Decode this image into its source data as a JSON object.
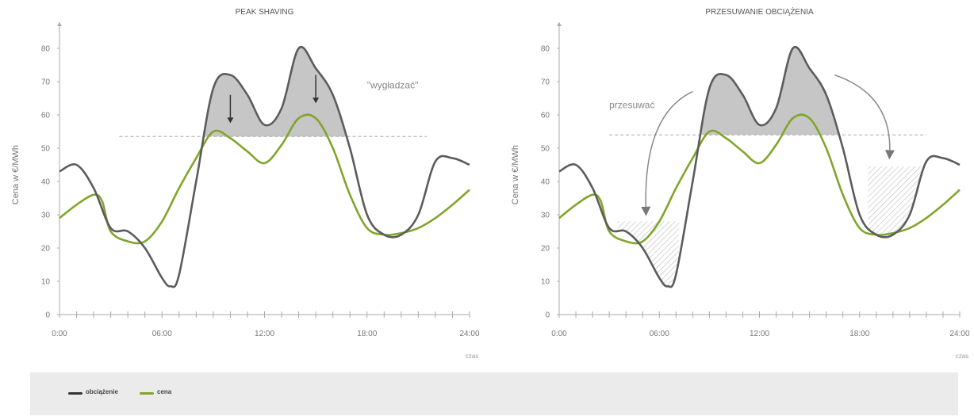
{
  "colors": {
    "load": "#5c5c5c",
    "price": "#7fa62b",
    "fill": "#c6c6c6",
    "axis": "#aaaaaa",
    "text": "#777777"
  },
  "legend": {
    "load_label": "obciążenie",
    "price_label": "cena"
  },
  "chart_data": [
    {
      "type": "line",
      "title": "PEAK SHAVING",
      "xlabel": "czas",
      "ylabel": "Cena w €/MWh",
      "xlim": [
        0,
        24
      ],
      "ylim": [
        0,
        85
      ],
      "x_ticks": [
        "0:00",
        "06:00",
        "12:00",
        "18:00",
        "24:00"
      ],
      "y_ticks": [
        0,
        10,
        20,
        30,
        40,
        50,
        60,
        70,
        80
      ],
      "threshold": 53.5,
      "annotation": "\"wygładzać\"",
      "series": [
        {
          "name": "obciążenie",
          "x": [
            0,
            1,
            2,
            3,
            4,
            5,
            6,
            6.5,
            7,
            8,
            9,
            10,
            11,
            12,
            13,
            14,
            15,
            16,
            17,
            18,
            19,
            20,
            21,
            22,
            23,
            24
          ],
          "y": [
            43,
            45,
            38,
            26,
            25,
            20,
            11,
            8.5,
            12,
            40,
            68,
            72,
            66,
            57,
            62,
            80,
            74,
            66,
            50,
            30,
            24,
            24,
            30,
            46,
            47,
            45
          ]
        },
        {
          "name": "cena",
          "x": [
            0,
            1,
            2,
            2.5,
            3,
            4,
            5,
            6,
            7,
            8,
            9,
            10,
            11,
            12,
            13,
            14,
            15,
            16,
            17,
            18,
            19,
            20,
            21,
            22,
            23,
            24
          ],
          "y": [
            29,
            33,
            36,
            34,
            25,
            22,
            22,
            28,
            38,
            47,
            55,
            53,
            49,
            45.5,
            51,
            59,
            59,
            50,
            36,
            26,
            24,
            24.5,
            26,
            29,
            33,
            37.5
          ]
        }
      ]
    },
    {
      "type": "line",
      "title": "PRZESUWANIE OBCIĄŻENIA",
      "xlabel": "czas",
      "ylabel": "Cena w €/MWh",
      "xlim": [
        0,
        24
      ],
      "ylim": [
        0,
        85
      ],
      "x_ticks": [
        "0:00",
        "06:00",
        "12:00",
        "18:00",
        "24:00"
      ],
      "y_ticks": [
        0,
        10,
        20,
        30,
        40,
        50,
        60,
        70,
        80
      ],
      "threshold": 54,
      "annotation": "przesuwać",
      "series": [
        {
          "name": "obciążenie",
          "x": [
            0,
            1,
            2,
            3,
            4,
            5,
            6,
            6.5,
            7,
            8,
            9,
            10,
            11,
            12,
            13,
            14,
            15,
            16,
            17,
            18,
            19,
            20,
            21,
            22,
            23,
            24
          ],
          "y": [
            43,
            45,
            38,
            26,
            25,
            20,
            11,
            8.5,
            12,
            40,
            68,
            72,
            66,
            57,
            62,
            80,
            74,
            66,
            50,
            30,
            24,
            24,
            30,
            46,
            47,
            45
          ]
        },
        {
          "name": "cena",
          "x": [
            0,
            1,
            2,
            2.5,
            3,
            4,
            5,
            6,
            7,
            8,
            9,
            10,
            11,
            12,
            13,
            14,
            15,
            16,
            17,
            18,
            19,
            20,
            21,
            22,
            23,
            24
          ],
          "y": [
            29,
            33,
            36,
            34,
            25,
            22,
            22,
            28,
            38,
            47,
            55,
            53,
            49,
            45.5,
            51,
            59,
            59,
            50,
            36,
            26,
            24,
            24.5,
            26,
            29,
            33,
            37.5
          ]
        }
      ],
      "shifted_areas": [
        {
          "x": [
            3.5,
            7.2
          ],
          "top": 28
        },
        {
          "x": [
            18.5,
            22
          ],
          "top": 44.5
        }
      ]
    }
  ]
}
